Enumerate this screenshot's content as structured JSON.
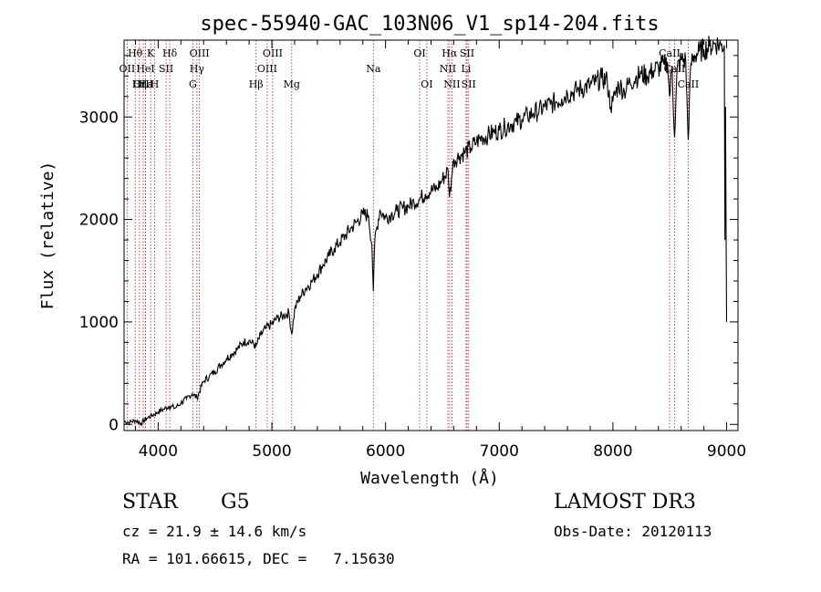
{
  "chart_data": {
    "type": "line",
    "title": "spec-55940-GAC_103N06_V1_sp14-204.fits",
    "xlabel": "Wavelength (Å)",
    "ylabel": "Flux (relative)",
    "xlim": [
      3700,
      9100
    ],
    "ylim": [
      -60,
      3750
    ],
    "x_ticks": [
      4000,
      5000,
      6000,
      7000,
      8000,
      9000
    ],
    "y_ticks": [
      0,
      1000,
      2000,
      3000
    ],
    "series": [
      {
        "name": "flux",
        "x": [
          3700,
          3750,
          3800,
          3850,
          3900,
          3950,
          4000,
          4050,
          4100,
          4150,
          4200,
          4250,
          4300,
          4340,
          4400,
          4450,
          4500,
          4550,
          4600,
          4650,
          4700,
          4750,
          4800,
          4861,
          4900,
          4950,
          5000,
          5050,
          5100,
          5150,
          5175,
          5200,
          5250,
          5300,
          5350,
          5400,
          5450,
          5500,
          5550,
          5600,
          5650,
          5700,
          5750,
          5800,
          5850,
          5880,
          5893,
          5906,
          5950,
          6000,
          6050,
          6100,
          6150,
          6200,
          6250,
          6300,
          6350,
          6400,
          6450,
          6500,
          6550,
          6563,
          6580,
          6600,
          6650,
          6700,
          6750,
          6800,
          6850,
          6900,
          6950,
          7000,
          7050,
          7100,
          7150,
          7200,
          7250,
          7300,
          7350,
          7400,
          7450,
          7500,
          7550,
          7600,
          7650,
          7700,
          7750,
          7800,
          7850,
          7900,
          7950,
          7980,
          8000,
          8050,
          8100,
          8150,
          8200,
          8250,
          8300,
          8350,
          8400,
          8450,
          8480,
          8498,
          8520,
          8542,
          8565,
          8600,
          8640,
          8662,
          8685,
          8720,
          8760,
          8800,
          8850,
          8900,
          8950,
          8980,
          8985,
          8990,
          8995,
          9000
        ],
        "values": [
          30,
          20,
          40,
          10,
          60,
          90,
          120,
          150,
          180,
          160,
          210,
          250,
          300,
          260,
          420,
          470,
          520,
          580,
          640,
          690,
          740,
          800,
          820,
          760,
          870,
          940,
          980,
          1040,
          1060,
          1090,
          880,
          1120,
          1250,
          1330,
          1390,
          1470,
          1560,
          1640,
          1720,
          1780,
          1850,
          1920,
          1980,
          2050,
          2040,
          1750,
          1300,
          1800,
          2090,
          2020,
          2050,
          2080,
          2110,
          2130,
          2170,
          2200,
          2250,
          2280,
          2300,
          2390,
          2480,
          2220,
          2400,
          2580,
          2620,
          2660,
          2700,
          2760,
          2800,
          2820,
          2850,
          2870,
          2900,
          2930,
          2950,
          2980,
          3010,
          3040,
          3060,
          3100,
          3120,
          3150,
          3180,
          3230,
          3240,
          3270,
          3290,
          3310,
          3340,
          3380,
          3350,
          3100,
          3150,
          3320,
          3250,
          3340,
          3380,
          3420,
          3400,
          3450,
          3480,
          3510,
          3540,
          3200,
          3500,
          2800,
          3470,
          3560,
          3550,
          2780,
          3520,
          3600,
          3640,
          3660,
          3690,
          3720,
          3700,
          3700,
          1800,
          3100,
          2000,
          1000
        ]
      }
    ],
    "line_markers": [
      {
        "label": "Hθ",
        "x": 3798,
        "row": 0
      },
      {
        "label": "OII",
        "x": 3727,
        "row": 1
      },
      {
        "label": "OIII",
        "x": 3869,
        "row": 2
      },
      {
        "label": "Hε",
        "x": 3889,
        "row": 2
      },
      {
        "label": "K",
        "x": 3934,
        "row": 0
      },
      {
        "label": "H",
        "x": 3969,
        "row": 2
      },
      {
        "label": "HeI",
        "x": 3889,
        "row": 1
      },
      {
        "label": "SII",
        "x": 4070,
        "row": 1
      },
      {
        "label": "Hδ",
        "x": 4102,
        "row": 0
      },
      {
        "label": "Hη",
        "x": 3835,
        "row": 2
      },
      {
        "label": "OIII",
        "x": 4363,
        "row": 0
      },
      {
        "label": "Hγ",
        "x": 4341,
        "row": 1
      },
      {
        "label": "G",
        "x": 4305,
        "row": 2
      },
      {
        "label": "Hβ",
        "x": 4861,
        "row": 2
      },
      {
        "label": "OIII",
        "x": 5007,
        "row": 0
      },
      {
        "label": "OIII",
        "x": 4959,
        "row": 1
      },
      {
        "label": "Mg",
        "x": 5175,
        "row": 2
      },
      {
        "label": "Na",
        "x": 5893,
        "row": 1
      },
      {
        "label": "OI",
        "x": 6300,
        "row": 0
      },
      {
        "label": "OI",
        "x": 6363,
        "row": 2
      },
      {
        "label": "Hα",
        "x": 6563,
        "row": 0
      },
      {
        "label": "NII",
        "x": 6548,
        "row": 1
      },
      {
        "label": "NII",
        "x": 6584,
        "row": 2
      },
      {
        "label": "SII",
        "x": 6717,
        "row": 0
      },
      {
        "label": "Li",
        "x": 6708,
        "row": 1
      },
      {
        "label": "SII",
        "x": 6731,
        "row": 2
      },
      {
        "label": "CaII",
        "x": 8498,
        "row": 0
      },
      {
        "label": "CaII",
        "x": 8542,
        "row": 1
      },
      {
        "label": "CaII",
        "x": 8662,
        "row": 2
      }
    ],
    "legend": "none",
    "grid": false
  },
  "info": {
    "object_class": "STAR",
    "subclass": "G5",
    "survey": "LAMOST DR3",
    "redshift": "cz = 21.9 ± 14.6 km/s",
    "obs_date": "Obs-Date: 20120113",
    "coords": "RA = 101.66615, DEC =   7.15630"
  },
  "colors": {
    "spectrum": "#000000",
    "marker_line": "#b22222",
    "axis": "#000000"
  }
}
